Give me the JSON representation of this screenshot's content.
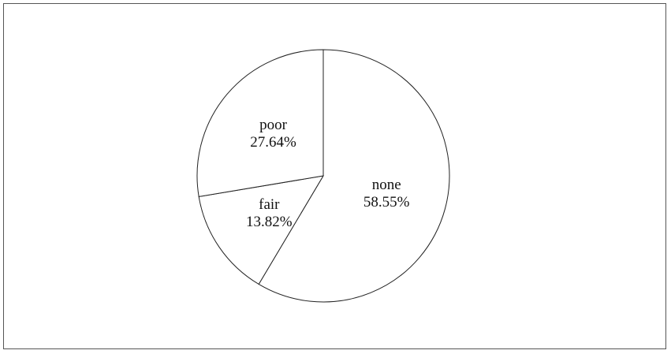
{
  "chart_data": {
    "type": "pie",
    "slices": [
      {
        "label": "none",
        "value": 58.55,
        "value_label": "58.55%"
      },
      {
        "label": "fair",
        "value": 13.82,
        "value_label": "13.82%"
      },
      {
        "label": "poor",
        "value": 27.64,
        "value_label": "27.64%"
      }
    ],
    "start_angle": "12 o'clock",
    "direction": "clockwise",
    "fill_color": "#ffffff",
    "stroke_color": "#222222",
    "legend": "none"
  }
}
